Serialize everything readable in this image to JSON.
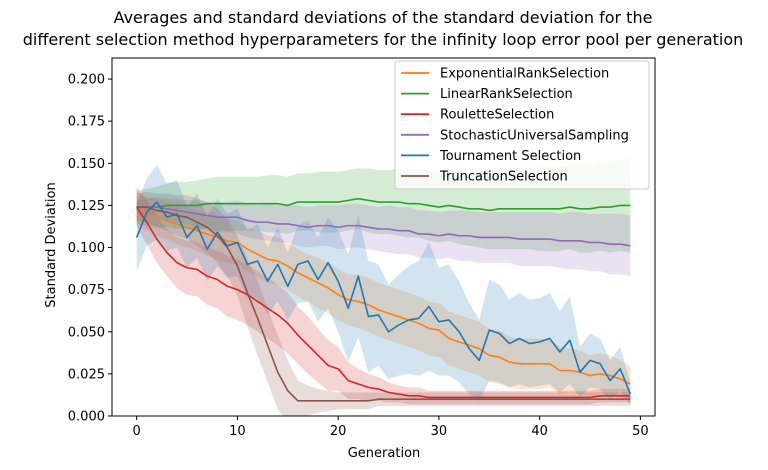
{
  "chart_data": {
    "type": "line",
    "title_lines": [
      "Averages and standard deviations of the standard deviation for the",
      "different selection method hyperparameters for the infinity loop error pool per generation"
    ],
    "xlabel": "Generation",
    "ylabel": "Standard Deviation",
    "xlim": [
      -2.45,
      51.45
    ],
    "ylim": [
      0,
      0.2125
    ],
    "xticks": [
      0,
      10,
      20,
      30,
      40,
      50
    ],
    "xtick_labels": [
      "0",
      "10",
      "20",
      "30",
      "40",
      "50"
    ],
    "yticks": [
      0,
      0.025,
      0.05,
      0.075,
      0.1,
      0.125,
      0.15,
      0.175,
      0.2
    ],
    "ytick_labels": [
      "0.000",
      "0.025",
      "0.050",
      "0.075",
      "0.100",
      "0.125",
      "0.150",
      "0.175",
      "0.200"
    ],
    "grid": false,
    "legend_position": "upper-right",
    "x": [
      0,
      1,
      2,
      3,
      4,
      5,
      6,
      7,
      8,
      9,
      10,
      11,
      12,
      13,
      14,
      15,
      16,
      17,
      18,
      19,
      20,
      21,
      22,
      23,
      24,
      25,
      26,
      27,
      28,
      29,
      30,
      31,
      32,
      33,
      34,
      35,
      36,
      37,
      38,
      39,
      40,
      41,
      42,
      43,
      44,
      45,
      46,
      47,
      48,
      49
    ],
    "series": [
      {
        "name": "ExponentialRankSelection",
        "color": "#ff7f0e",
        "values": [
          0.123,
          0.12,
          0.118,
          0.116,
          0.114,
          0.112,
          0.11,
          0.108,
          0.106,
          0.104,
          0.103,
          0.099,
          0.096,
          0.093,
          0.092,
          0.089,
          0.085,
          0.082,
          0.079,
          0.076,
          0.072,
          0.069,
          0.068,
          0.066,
          0.063,
          0.061,
          0.059,
          0.057,
          0.055,
          0.052,
          0.051,
          0.046,
          0.044,
          0.042,
          0.04,
          0.036,
          0.035,
          0.032,
          0.031,
          0.031,
          0.031,
          0.031,
          0.027,
          0.027,
          0.026,
          0.024,
          0.025,
          0.024,
          0.022,
          0.019
        ],
        "std": [
          0.01,
          0.01,
          0.011,
          0.011,
          0.012,
          0.012,
          0.012,
          0.013,
          0.013,
          0.013,
          0.013,
          0.013,
          0.014,
          0.014,
          0.014,
          0.014,
          0.014,
          0.014,
          0.015,
          0.015,
          0.015,
          0.015,
          0.016,
          0.016,
          0.016,
          0.016,
          0.016,
          0.016,
          0.016,
          0.016,
          0.016,
          0.016,
          0.016,
          0.016,
          0.016,
          0.016,
          0.016,
          0.015,
          0.015,
          0.015,
          0.015,
          0.014,
          0.014,
          0.013,
          0.013,
          0.012,
          0.012,
          0.012,
          0.011,
          0.011
        ]
      },
      {
        "name": "LinearRankSelection",
        "color": "#2ca02c",
        "values": [
          0.124,
          0.124,
          0.124,
          0.125,
          0.125,
          0.125,
          0.125,
          0.126,
          0.126,
          0.126,
          0.126,
          0.126,
          0.126,
          0.126,
          0.126,
          0.125,
          0.127,
          0.127,
          0.127,
          0.127,
          0.127,
          0.128,
          0.129,
          0.128,
          0.127,
          0.127,
          0.127,
          0.126,
          0.126,
          0.125,
          0.124,
          0.125,
          0.124,
          0.123,
          0.123,
          0.122,
          0.123,
          0.123,
          0.123,
          0.123,
          0.123,
          0.123,
          0.123,
          0.124,
          0.123,
          0.123,
          0.124,
          0.124,
          0.125,
          0.125
        ],
        "std": [
          0.01,
          0.011,
          0.012,
          0.013,
          0.014,
          0.014,
          0.015,
          0.015,
          0.016,
          0.016,
          0.016,
          0.016,
          0.016,
          0.017,
          0.017,
          0.017,
          0.017,
          0.017,
          0.018,
          0.018,
          0.018,
          0.018,
          0.018,
          0.019,
          0.019,
          0.019,
          0.02,
          0.02,
          0.02,
          0.021,
          0.021,
          0.021,
          0.022,
          0.022,
          0.023,
          0.023,
          0.024,
          0.024,
          0.024,
          0.024,
          0.025,
          0.025,
          0.025,
          0.025,
          0.026,
          0.026,
          0.026,
          0.027,
          0.027,
          0.028
        ]
      },
      {
        "name": "RouletteSelection",
        "color": "#d62728",
        "values": [
          0.124,
          0.115,
          0.105,
          0.097,
          0.091,
          0.088,
          0.087,
          0.083,
          0.081,
          0.077,
          0.075,
          0.072,
          0.068,
          0.064,
          0.06,
          0.055,
          0.048,
          0.042,
          0.036,
          0.03,
          0.028,
          0.021,
          0.019,
          0.017,
          0.016,
          0.014,
          0.013,
          0.012,
          0.012,
          0.011,
          0.011,
          0.011,
          0.011,
          0.011,
          0.011,
          0.011,
          0.011,
          0.011,
          0.011,
          0.011,
          0.011,
          0.011,
          0.011,
          0.011,
          0.011,
          0.011,
          0.012,
          0.012,
          0.012,
          0.012
        ],
        "std": [
          0.012,
          0.013,
          0.014,
          0.014,
          0.015,
          0.016,
          0.016,
          0.017,
          0.017,
          0.018,
          0.018,
          0.018,
          0.018,
          0.018,
          0.018,
          0.018,
          0.017,
          0.017,
          0.016,
          0.015,
          0.013,
          0.011,
          0.009,
          0.008,
          0.007,
          0.006,
          0.005,
          0.005,
          0.005,
          0.004,
          0.004,
          0.004,
          0.004,
          0.004,
          0.004,
          0.004,
          0.004,
          0.004,
          0.004,
          0.004,
          0.004,
          0.004,
          0.004,
          0.004,
          0.004,
          0.004,
          0.004,
          0.004,
          0.004,
          0.004
        ]
      },
      {
        "name": "StochasticUniversalSampling",
        "color": "#9467bd",
        "values": [
          0.124,
          0.124,
          0.124,
          0.123,
          0.122,
          0.121,
          0.12,
          0.119,
          0.118,
          0.118,
          0.118,
          0.116,
          0.115,
          0.115,
          0.114,
          0.114,
          0.113,
          0.112,
          0.113,
          0.113,
          0.112,
          0.113,
          0.113,
          0.112,
          0.111,
          0.111,
          0.11,
          0.11,
          0.108,
          0.108,
          0.107,
          0.108,
          0.107,
          0.107,
          0.106,
          0.106,
          0.106,
          0.106,
          0.105,
          0.105,
          0.105,
          0.105,
          0.104,
          0.104,
          0.104,
          0.103,
          0.103,
          0.102,
          0.102,
          0.101
        ],
        "std": [
          0.004,
          0.005,
          0.006,
          0.006,
          0.007,
          0.007,
          0.008,
          0.008,
          0.009,
          0.009,
          0.01,
          0.01,
          0.01,
          0.011,
          0.011,
          0.011,
          0.012,
          0.012,
          0.012,
          0.012,
          0.013,
          0.013,
          0.013,
          0.013,
          0.013,
          0.014,
          0.014,
          0.014,
          0.014,
          0.014,
          0.014,
          0.014,
          0.015,
          0.015,
          0.015,
          0.015,
          0.015,
          0.015,
          0.016,
          0.016,
          0.016,
          0.016,
          0.016,
          0.017,
          0.017,
          0.017,
          0.017,
          0.018,
          0.018,
          0.018
        ]
      },
      {
        "name": "Tournament Selection",
        "color": "#1f77b4",
        "values": [
          0.106,
          0.121,
          0.127,
          0.118,
          0.12,
          0.106,
          0.113,
          0.099,
          0.109,
          0.101,
          0.103,
          0.09,
          0.092,
          0.08,
          0.09,
          0.077,
          0.09,
          0.092,
          0.081,
          0.091,
          0.08,
          0.064,
          0.083,
          0.059,
          0.06,
          0.05,
          0.054,
          0.057,
          0.058,
          0.065,
          0.056,
          0.057,
          0.05,
          0.04,
          0.033,
          0.051,
          0.049,
          0.043,
          0.046,
          0.043,
          0.044,
          0.046,
          0.038,
          0.045,
          0.026,
          0.033,
          0.031,
          0.021,
          0.028,
          0.013
        ],
        "std": [
          0.02,
          0.02,
          0.022,
          0.02,
          0.02,
          0.018,
          0.019,
          0.019,
          0.02,
          0.019,
          0.02,
          0.02,
          0.022,
          0.02,
          0.022,
          0.02,
          0.023,
          0.024,
          0.025,
          0.027,
          0.03,
          0.032,
          0.036,
          0.033,
          0.03,
          0.028,
          0.03,
          0.032,
          0.034,
          0.038,
          0.032,
          0.033,
          0.03,
          0.027,
          0.024,
          0.03,
          0.029,
          0.026,
          0.027,
          0.026,
          0.026,
          0.027,
          0.024,
          0.026,
          0.015,
          0.016,
          0.015,
          0.012,
          0.013,
          0.007
        ]
      },
      {
        "name": "TruncationSelection",
        "color": "#8c564b",
        "values": [
          0.124,
          0.124,
          0.122,
          0.121,
          0.119,
          0.118,
          0.115,
          0.112,
          0.107,
          0.1,
          0.089,
          0.073,
          0.058,
          0.042,
          0.026,
          0.015,
          0.009,
          0.009,
          0.009,
          0.009,
          0.009,
          0.009,
          0.009,
          0.009,
          0.01,
          0.01,
          0.01,
          0.01,
          0.01,
          0.01,
          0.01,
          0.01,
          0.01,
          0.01,
          0.01,
          0.01,
          0.01,
          0.01,
          0.01,
          0.01,
          0.01,
          0.01,
          0.01,
          0.01,
          0.01,
          0.01,
          0.01,
          0.01,
          0.01,
          0.01
        ],
        "std": [
          0.008,
          0.009,
          0.01,
          0.011,
          0.012,
          0.013,
          0.014,
          0.015,
          0.016,
          0.017,
          0.018,
          0.02,
          0.022,
          0.022,
          0.022,
          0.018,
          0.012,
          0.009,
          0.007,
          0.006,
          0.005,
          0.005,
          0.005,
          0.005,
          0.004,
          0.004,
          0.004,
          0.004,
          0.004,
          0.004,
          0.004,
          0.004,
          0.004,
          0.004,
          0.004,
          0.004,
          0.004,
          0.004,
          0.004,
          0.004,
          0.004,
          0.004,
          0.004,
          0.004,
          0.004,
          0.004,
          0.004,
          0.004,
          0.004,
          0.004
        ]
      }
    ]
  }
}
